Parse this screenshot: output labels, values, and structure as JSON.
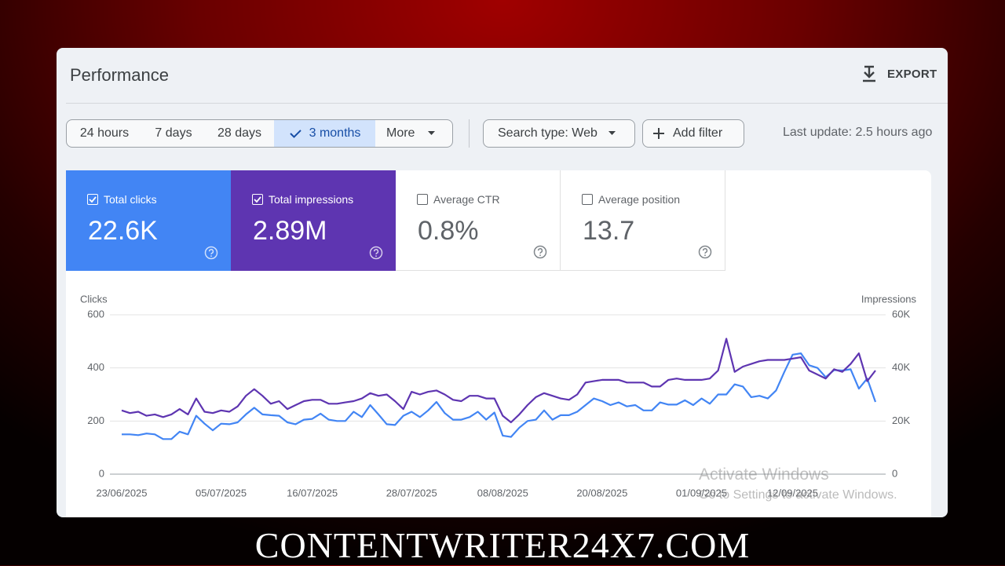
{
  "header": {
    "title": "Performance",
    "export": "EXPORT"
  },
  "filters": {
    "ranges": [
      {
        "label": "24 hours",
        "selected": false
      },
      {
        "label": "7 days",
        "selected": false
      },
      {
        "label": "28 days",
        "selected": false
      },
      {
        "label": "3 months",
        "selected": true
      },
      {
        "label": "More",
        "selected": false
      }
    ],
    "search_type": "Search type: Web",
    "add_filter": "Add filter",
    "last_update": "Last update: 2.5 hours ago"
  },
  "metrics": [
    {
      "label": "Total clicks",
      "value": "22.6K",
      "checked": true,
      "color": "#4285f4"
    },
    {
      "label": "Total impressions",
      "value": "2.89M",
      "checked": true,
      "color": "#5e35b1"
    },
    {
      "label": "Average CTR",
      "value": "0.8%",
      "checked": false
    },
    {
      "label": "Average position",
      "value": "13.7",
      "checked": false
    }
  ],
  "chart_data": {
    "type": "line",
    "y_label": "Clicks",
    "y2_label": "Impressions",
    "categories": [
      "23/06/2025",
      null,
      null,
      null,
      null,
      null,
      null,
      null,
      null,
      null,
      null,
      null,
      "05/07/2025",
      null,
      null,
      null,
      null,
      null,
      null,
      null,
      null,
      null,
      null,
      "16/07/2025",
      null,
      null,
      null,
      null,
      null,
      null,
      null,
      null,
      null,
      null,
      null,
      "28/07/2025",
      null,
      null,
      null,
      null,
      null,
      null,
      null,
      null,
      null,
      null,
      "08/08/2025",
      null,
      null,
      null,
      null,
      null,
      null,
      null,
      null,
      null,
      null,
      null,
      "20/08/2025",
      null,
      null,
      null,
      null,
      null,
      null,
      null,
      null,
      null,
      null,
      null,
      "01/09/2025",
      null,
      null,
      null,
      null,
      null,
      null,
      null,
      null,
      null,
      null,
      "12/09/2025",
      null,
      null,
      null,
      null,
      null,
      null,
      null,
      null,
      null,
      null
    ],
    "series": [
      {
        "name": "Clicks",
        "color": "#4285f4",
        "values": [
          150,
          150,
          147,
          153,
          150,
          132,
          132,
          160,
          150,
          220,
          190,
          165,
          190,
          188,
          195,
          225,
          250,
          225,
          222,
          220,
          195,
          188,
          205,
          208,
          228,
          205,
          200,
          200,
          235,
          215,
          260,
          225,
          188,
          185,
          220,
          235,
          215,
          240,
          272,
          230,
          205,
          205,
          215,
          235,
          205,
          232,
          145,
          140,
          175,
          200,
          205,
          240,
          205,
          222,
          222,
          235,
          260,
          285,
          275,
          260,
          270,
          255,
          260,
          240,
          240,
          270,
          262,
          262,
          278,
          260,
          285,
          265,
          300,
          300,
          338,
          330,
          290,
          295,
          285,
          315,
          385,
          450,
          455,
          410,
          400,
          365,
          392,
          390,
          395,
          322,
          360,
          272
        ]
      },
      {
        "name": "Impressions",
        "color": "#5e35b1",
        "axis": "y2",
        "values": [
          24000,
          23000,
          23500,
          22000,
          22500,
          21500,
          22500,
          24500,
          22500,
          28500,
          23500,
          23000,
          24000,
          23500,
          25500,
          29500,
          32000,
          29500,
          26500,
          27500,
          24500,
          26000,
          27500,
          28000,
          28000,
          26500,
          26500,
          27000,
          27500,
          28500,
          30500,
          29500,
          30000,
          27500,
          24500,
          31000,
          30000,
          31000,
          31500,
          30000,
          28000,
          27500,
          29500,
          29500,
          28500,
          28500,
          22000,
          19500,
          22500,
          26000,
          29000,
          30500,
          29500,
          28500,
          28000,
          30000,
          34500,
          35000,
          35500,
          35500,
          35500,
          34500,
          34500,
          34500,
          33000,
          33000,
          35500,
          36000,
          35500,
          35500,
          35500,
          36000,
          39000,
          51000,
          38500,
          40500,
          41500,
          42500,
          43000,
          43000,
          43000,
          43500,
          44000,
          39000,
          37500,
          36000,
          39500,
          38500,
          41500,
          45500,
          35000,
          39000
        ]
      }
    ],
    "ylim": [
      0,
      600
    ],
    "yticks": [
      0,
      200,
      400,
      600
    ],
    "y2lim": [
      0,
      60000
    ],
    "y2ticks": [
      0,
      {
        "value": 20000,
        "label": "20K"
      },
      {
        "value": 40000,
        "label": "40K"
      },
      {
        "value": 60000,
        "label": "60K"
      }
    ],
    "grid": true
  },
  "watermark": {
    "title": "Activate Windows",
    "text": "Go to Settings to activate Windows."
  },
  "footer": {
    "site": "CONTENTWRITER24X7.COM"
  }
}
